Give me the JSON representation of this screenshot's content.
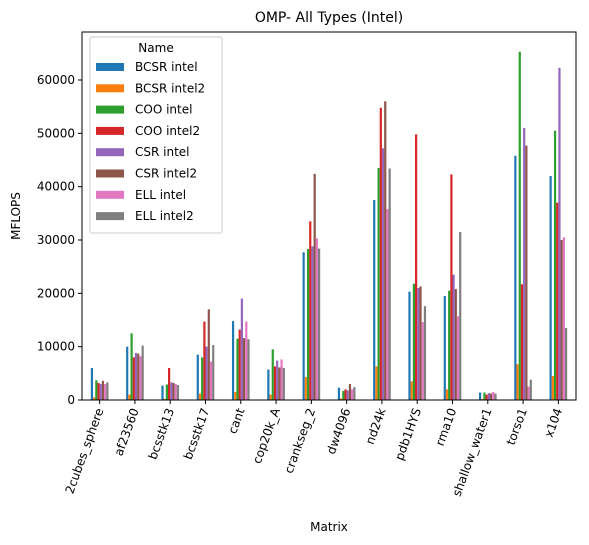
{
  "chart_data": {
    "type": "bar",
    "title": "OMP- All Types (Intel)",
    "xlabel": "Matrix",
    "ylabel": "MFLOPS",
    "ylim": [
      0,
      69000
    ],
    "yticks": [
      0,
      10000,
      20000,
      30000,
      40000,
      50000,
      60000
    ],
    "ytick_labels": [
      "0",
      "10000",
      "20000",
      "30000",
      "40000",
      "50000",
      "60000"
    ],
    "grid": false,
    "legend": {
      "title": "Name",
      "placement": "top-left"
    },
    "categories": [
      "2cubes_sphere",
      "af23560",
      "bcsstk13",
      "bcsstk17",
      "cant",
      "cop20k_A",
      "crankseg_2",
      "dw4096",
      "nd24k",
      "pdb1HYS",
      "rma10",
      "shallow_water1",
      "torso1",
      "x104"
    ],
    "series": [
      {
        "name": "BCSR intel",
        "color": "#1f77b4",
        "values": [
          6000,
          10000,
          2700,
          8500,
          14800,
          5700,
          27700,
          2300,
          37500,
          20300,
          19500,
          1400,
          45800,
          42000
        ]
      },
      {
        "name": "BCSR intel2",
        "color": "#ff7f0e",
        "values": [
          500,
          1000,
          200,
          1200,
          1500,
          1000,
          4300,
          300,
          6300,
          3500,
          2000,
          200,
          6700,
          4500
        ]
      },
      {
        "name": "COO intel",
        "color": "#2ca02c",
        "values": [
          3700,
          12500,
          2900,
          8000,
          11500,
          9500,
          28300,
          1700,
          43500,
          21800,
          20500,
          1400,
          65300,
          50500
        ]
      },
      {
        "name": "COO intel2",
        "color": "#d62728",
        "values": [
          3200,
          8000,
          6000,
          14700,
          13200,
          6300,
          33500,
          2000,
          54800,
          49800,
          42300,
          1000,
          21700,
          37000
        ]
      },
      {
        "name": "CSR intel",
        "color": "#9467bd",
        "values": [
          3000,
          8800,
          3300,
          10000,
          19000,
          7400,
          28800,
          1800,
          47200,
          21000,
          23500,
          1300,
          51000,
          62300
        ]
      },
      {
        "name": "CSR intel2",
        "color": "#8c564b",
        "values": [
          3600,
          8700,
          3200,
          17000,
          11600,
          6100,
          42400,
          3000,
          56000,
          21300,
          20800,
          1200,
          47700,
          30000
        ]
      },
      {
        "name": "ELL intel",
        "color": "#e377c2",
        "values": [
          3000,
          8200,
          3000,
          7200,
          14700,
          7600,
          30300,
          2000,
          35800,
          14600,
          15700,
          1500,
          2500,
          30500
        ]
      },
      {
        "name": "ELL intel2",
        "color": "#7f7f7f",
        "values": [
          3300,
          10200,
          2800,
          10300,
          11400,
          6000,
          28400,
          2400,
          43400,
          17600,
          31500,
          1200,
          3800,
          13500
        ]
      }
    ]
  }
}
